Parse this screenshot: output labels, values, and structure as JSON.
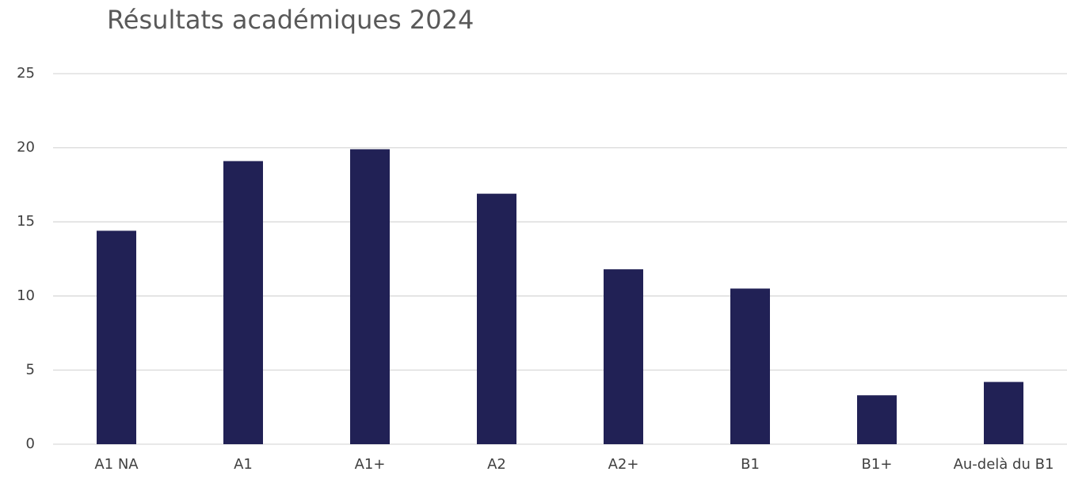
{
  "chart_data": {
    "type": "bar",
    "title": "Résultats académiques 2024",
    "categories": [
      "A1 NA",
      "A1",
      "A1+",
      "A2",
      "A2+",
      "B1",
      "B1+",
      "Au-delà du B1"
    ],
    "values": [
      14.4,
      19.1,
      19.9,
      16.9,
      11.8,
      10.5,
      3.3,
      4.2
    ],
    "color": "#212155",
    "ylim": [
      0,
      25
    ],
    "yticks": [
      0,
      5,
      10,
      15,
      20,
      25
    ],
    "grid": true
  }
}
